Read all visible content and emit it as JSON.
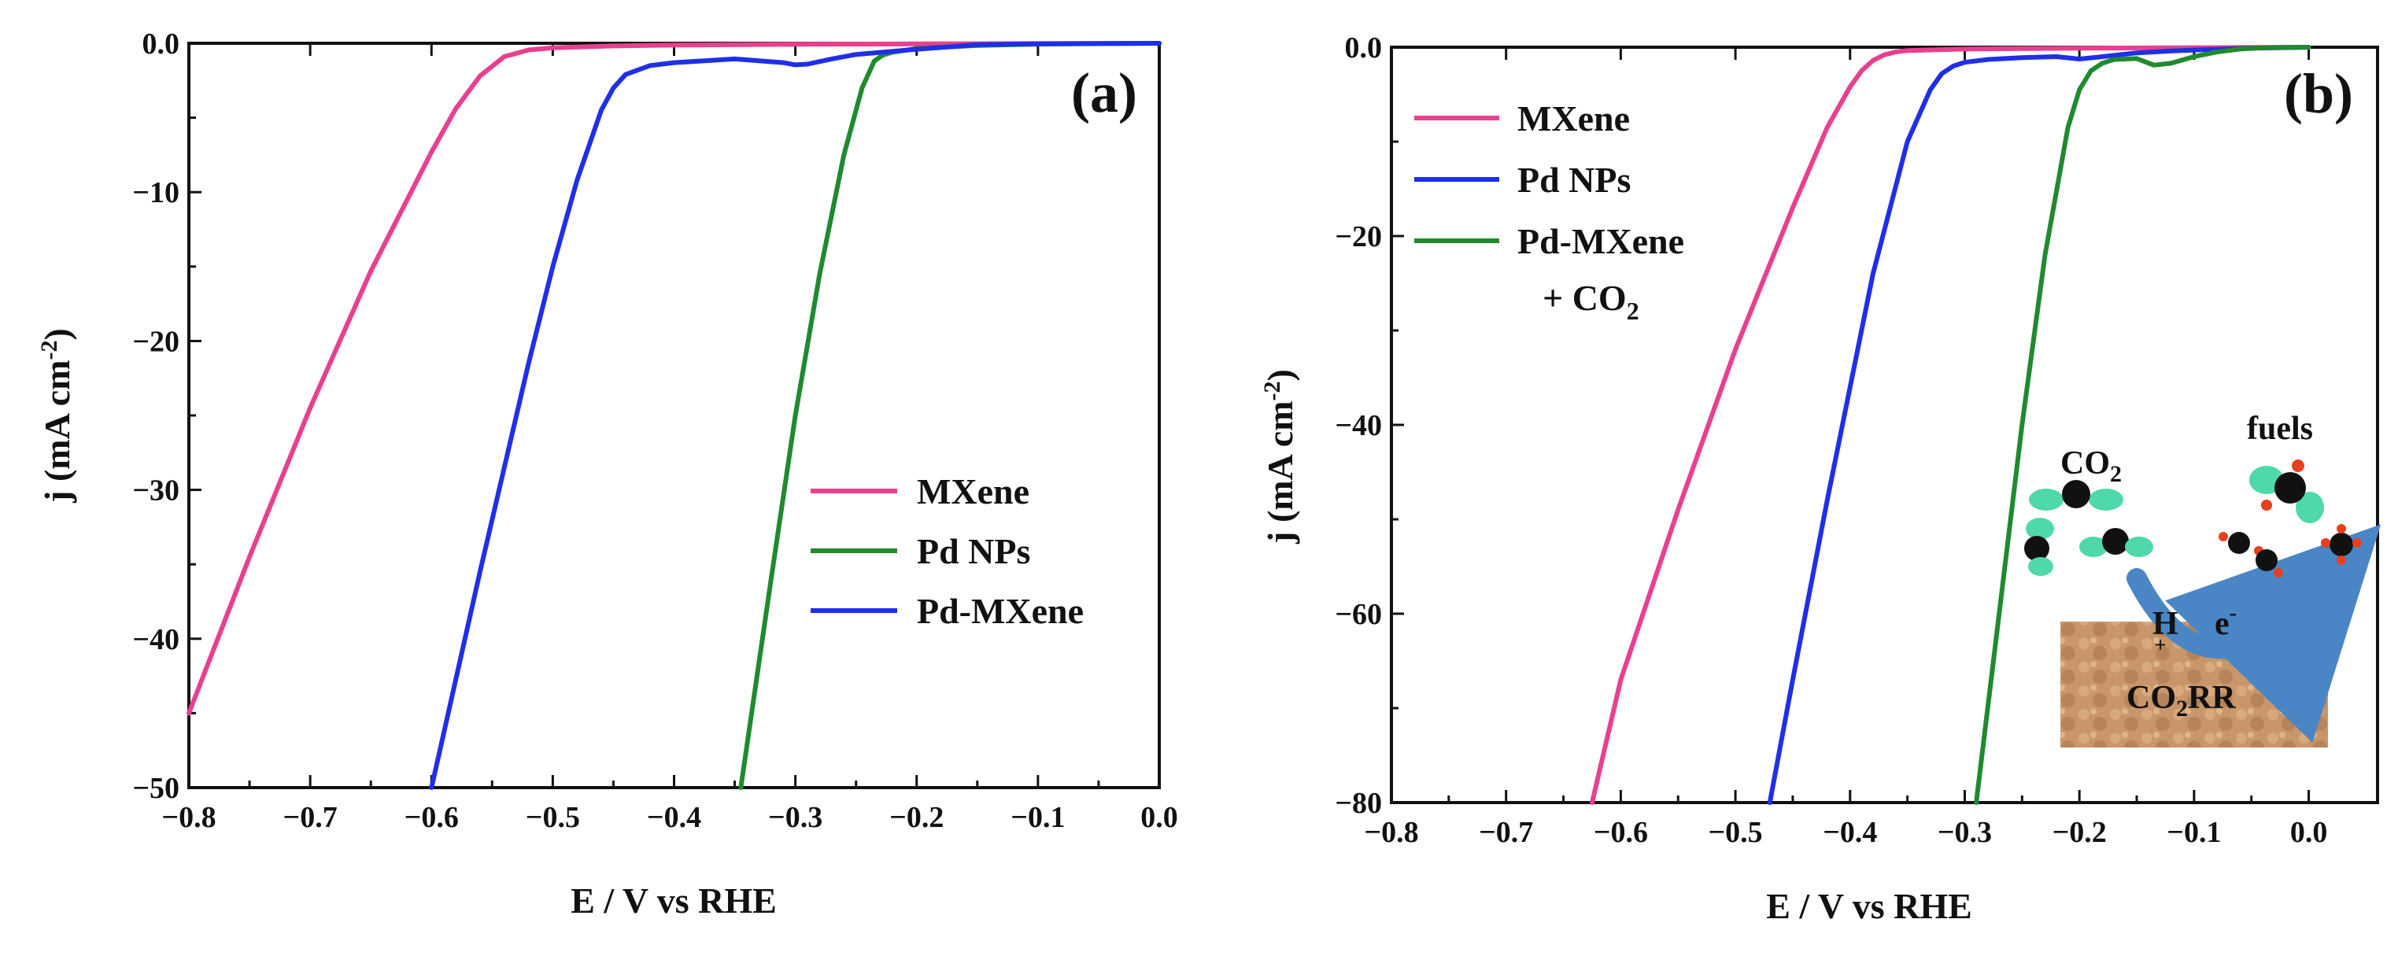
{
  "chart_data": [
    {
      "type": "line",
      "panel": "(a)",
      "xlabel": "E / V vs RHE",
      "ylabel_main": "j (mA cm",
      "ylabel_sup": "-2",
      "ylabel_close": ")",
      "xlim": [
        -0.8,
        0.0
      ],
      "ylim": [
        -50,
        0
      ],
      "xticks": [
        -0.8,
        -0.7,
        -0.6,
        -0.5,
        -0.4,
        -0.3,
        -0.2,
        -0.1,
        0.0
      ],
      "xtick_labels": [
        "−0.8",
        "−0.7",
        "−0.6",
        "−0.5",
        "−0.4",
        "−0.3",
        "−0.2",
        "−0.1",
        "0.0"
      ],
      "yticks": [
        0,
        -10,
        -20,
        -30,
        -40,
        -50
      ],
      "ytick_labels": [
        "0.0",
        "−10",
        "−20",
        "−30",
        "−40",
        "−50"
      ],
      "legend": [
        "MXene",
        "Pd NPs",
        "Pd-MXene"
      ],
      "legend_position": "right",
      "series": [
        {
          "name": "MXene",
          "color": "#e8408f",
          "x": [
            -0.8,
            -0.75,
            -0.7,
            -0.65,
            -0.6,
            -0.58,
            -0.56,
            -0.54,
            -0.52,
            -0.5,
            -0.45,
            -0.4,
            -0.3,
            -0.2,
            -0.1,
            0.0
          ],
          "y": [
            -45,
            -34.5,
            -24.5,
            -15.3,
            -7.3,
            -4.4,
            -2.2,
            -0.9,
            -0.45,
            -0.3,
            -0.18,
            -0.12,
            -0.07,
            -0.04,
            -0.02,
            0.0
          ]
        },
        {
          "name": "Pd NPs",
          "color": "#1f8a2e",
          "x": [
            -0.345,
            -0.32,
            -0.3,
            -0.28,
            -0.26,
            -0.245,
            -0.235,
            -0.228,
            -0.22,
            -0.2,
            -0.15,
            -0.1,
            0.0
          ],
          "y": [
            -50,
            -36,
            -25,
            -15.5,
            -7.5,
            -3.0,
            -1.2,
            -0.8,
            -0.6,
            -0.35,
            -0.15,
            -0.06,
            0.0
          ]
        },
        {
          "name": "Pd-MXene",
          "color": "#1f2fe8",
          "x": [
            -0.6,
            -0.56,
            -0.52,
            -0.5,
            -0.48,
            -0.46,
            -0.45,
            -0.44,
            -0.42,
            -0.4,
            -0.35,
            -0.31,
            -0.3,
            -0.29,
            -0.27,
            -0.25,
            -0.2,
            -0.15,
            -0.1,
            0.0
          ],
          "y": [
            -50,
            -35.5,
            -21.5,
            -15.0,
            -9.2,
            -4.5,
            -3.0,
            -2.1,
            -1.5,
            -1.3,
            -1.05,
            -1.3,
            -1.45,
            -1.4,
            -1.05,
            -0.75,
            -0.4,
            -0.1,
            -0.03,
            0.0
          ]
        }
      ]
    },
    {
      "type": "line",
      "panel": "(b)",
      "xlabel": "E / V vs RHE",
      "ylabel_main": "j (mA cm",
      "ylabel_sup": "-2",
      "ylabel_close": ")",
      "xlim": [
        -0.8,
        0.06
      ],
      "ylim": [
        -80,
        0
      ],
      "xticks": [
        -0.8,
        -0.7,
        -0.6,
        -0.5,
        -0.4,
        -0.3,
        -0.2,
        -0.1,
        0.0
      ],
      "xtick_labels": [
        "−0.8",
        "−0.7",
        "−0.6",
        "−0.5",
        "−0.4",
        "−0.3",
        "−0.2",
        "−0.1",
        "0.0"
      ],
      "yticks": [
        0,
        -20,
        -40,
        -60,
        -80
      ],
      "ytick_labels": [
        "0.0",
        "−20",
        "−40",
        "−60",
        "−80"
      ],
      "legend": [
        "MXene",
        "Pd NPs",
        "Pd-MXene"
      ],
      "legend_note": "+ CO",
      "legend_note_sub": "2",
      "legend_position": "top-left",
      "series": [
        {
          "name": "MXene",
          "color": "#e8408f",
          "x": [
            -0.625,
            -0.6,
            -0.55,
            -0.5,
            -0.45,
            -0.42,
            -0.4,
            -0.39,
            -0.38,
            -0.37,
            -0.36,
            -0.35,
            -0.3,
            -0.2,
            -0.1,
            0.0
          ],
          "y": [
            -80,
            -67,
            -49,
            -32,
            -17,
            -8.5,
            -4.2,
            -2.5,
            -1.4,
            -0.8,
            -0.5,
            -0.35,
            -0.2,
            -0.1,
            -0.05,
            0.0
          ]
        },
        {
          "name": "Pd NPs",
          "color": "#1f2fe8",
          "x": [
            -0.47,
            -0.45,
            -0.42,
            -0.38,
            -0.35,
            -0.33,
            -0.32,
            -0.31,
            -0.3,
            -0.28,
            -0.25,
            -0.22,
            -0.2,
            -0.18,
            -0.15,
            -0.12,
            -0.1,
            -0.05,
            0.0
          ],
          "y": [
            -80,
            -67,
            -48,
            -24,
            -10,
            -4.5,
            -2.8,
            -2.0,
            -1.6,
            -1.3,
            -1.1,
            -1.0,
            -1.25,
            -1.0,
            -0.6,
            -0.4,
            -0.3,
            -0.1,
            0.0
          ]
        },
        {
          "name": "Pd-MXene",
          "color": "#1f8a2e",
          "x": [
            -0.29,
            -0.27,
            -0.25,
            -0.23,
            -0.21,
            -0.2,
            -0.19,
            -0.18,
            -0.17,
            -0.15,
            -0.135,
            -0.12,
            -0.1,
            -0.08,
            -0.06,
            -0.04,
            0.0
          ],
          "y": [
            -80,
            -60,
            -40,
            -22,
            -8.5,
            -4.5,
            -2.5,
            -1.7,
            -1.3,
            -1.2,
            -1.9,
            -1.7,
            -1.0,
            -0.5,
            -0.2,
            -0.05,
            0.0
          ]
        }
      ]
    }
  ],
  "inset": {
    "co2_label": "CO",
    "co2_sub": "2",
    "fuels_label": "fuels",
    "h_label": "H",
    "h_sup": "+",
    "e_label": "e",
    "e_sup": "-",
    "reaction_label": "CO",
    "reaction_sub": "2",
    "reaction_suffix": "RR",
    "arrow_color": "#4a86c5",
    "surface_color": "#c8966a"
  }
}
